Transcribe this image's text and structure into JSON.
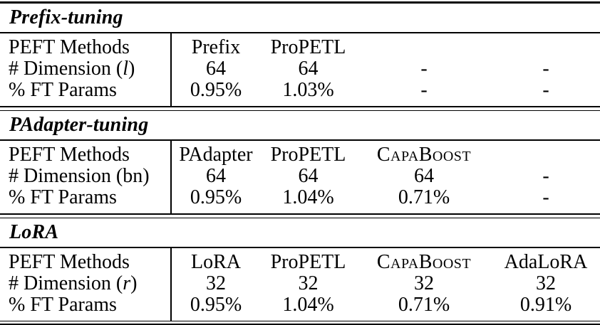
{
  "table": {
    "sections": [
      {
        "title": "Prefix-tuning",
        "rows": [
          {
            "label": "PEFT Methods",
            "cells": [
              "Prefix",
              "ProPETL",
              "",
              ""
            ]
          },
          {
            "pre": "# Dimension (",
            "var": "l",
            "post": ")",
            "cells": [
              "64",
              "64",
              "-",
              "-"
            ]
          },
          {
            "label": "% FT Params",
            "cells": [
              "0.95%",
              "1.03%",
              "-",
              "-"
            ]
          }
        ]
      },
      {
        "title": "PAdapter-tuning",
        "rows": [
          {
            "label": "PEFT Methods",
            "cells": [
              "PAdapter",
              "ProPETL",
              "CapaBoost",
              ""
            ]
          },
          {
            "pre": "# Dimension (",
            "var": "bn",
            "post": ")",
            "cells": [
              "64",
              "64",
              "64",
              "-"
            ]
          },
          {
            "label": "% FT Params",
            "cells": [
              "0.95%",
              "1.04%",
              "0.71%",
              "-"
            ]
          }
        ]
      },
      {
        "title": "LoRA",
        "rows": [
          {
            "label": "PEFT Methods",
            "cells": [
              "LoRA",
              "ProPETL",
              "CapaBoost",
              "AdaLoRA"
            ]
          },
          {
            "pre": "# Dimension (",
            "var": "r",
            "post": ")",
            "cells": [
              "32",
              "32",
              "32",
              "32"
            ]
          },
          {
            "label": "% FT Params",
            "cells": [
              "0.95%",
              "1.04%",
              "0.71%",
              "0.91%"
            ]
          }
        ]
      }
    ]
  }
}
